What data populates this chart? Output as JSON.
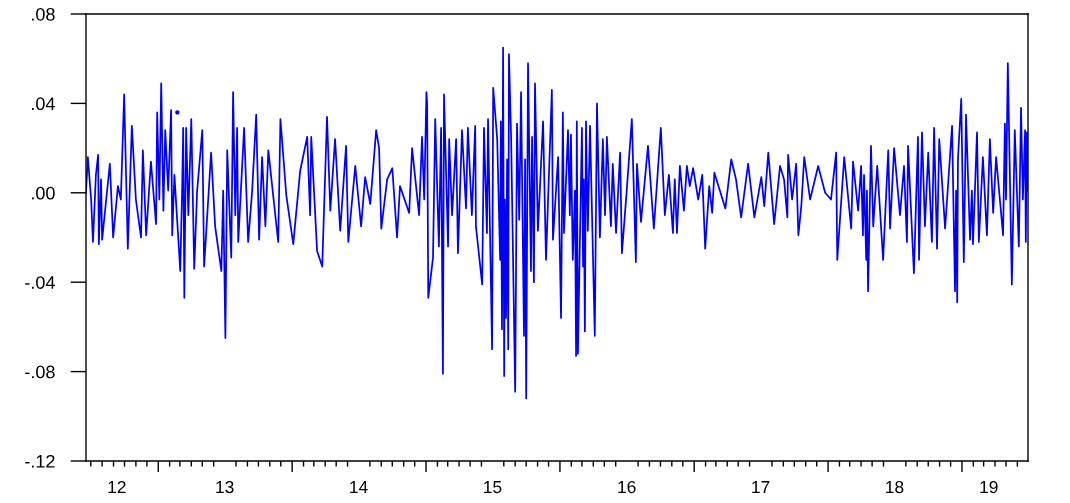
{
  "chart_data": {
    "type": "line",
    "grid": false,
    "xlim": [
      "2012-06-18",
      "2019-06-30"
    ],
    "xticks": [
      {
        "value": "2012-09-10",
        "label": "12"
      },
      {
        "value": "2013-01-01",
        "label": null
      },
      {
        "value": "2013-07-01",
        "label": "13"
      },
      {
        "value": "2014-01-01",
        "label": null
      },
      {
        "value": "2014-07-01",
        "label": "14"
      },
      {
        "value": "2015-01-01",
        "label": null
      },
      {
        "value": "2015-07-01",
        "label": "15"
      },
      {
        "value": "2016-01-01",
        "label": null
      },
      {
        "value": "2016-07-01",
        "label": "16"
      },
      {
        "value": "2017-01-01",
        "label": null
      },
      {
        "value": "2017-07-01",
        "label": "17"
      },
      {
        "value": "2018-01-01",
        "label": null
      },
      {
        "value": "2018-07-01",
        "label": "18"
      },
      {
        "value": "2019-01-01",
        "label": null
      },
      {
        "value": "2019-03-15",
        "label": "19"
      }
    ],
    "ylim": [
      -0.12,
      0.08
    ],
    "yticks": [
      {
        "value": -0.12,
        "label": "-.12"
      },
      {
        "value": -0.08,
        "label": "-.08"
      },
      {
        "value": -0.04,
        "label": "-.04"
      },
      {
        "value": 0.0,
        "label": ".00"
      },
      {
        "value": 0.04,
        "label": ".04"
      },
      {
        "value": 0.08,
        "label": ".08"
      }
    ],
    "series": [
      {
        "color": "#0000ff",
        "x": [
          "2012-06-18",
          "2012-06-23",
          "2012-07-02",
          "2012-07-07",
          "2012-07-15",
          "2012-07-21",
          "2012-07-23",
          "2012-07-29",
          "2012-08-01",
          "2012-08-22",
          "2012-08-31",
          "2012-09-13",
          "2012-09-21",
          "2012-09-30",
          "2012-10-10",
          "2012-10-21",
          "2012-11-01",
          "2012-11-15",
          "2012-11-20",
          "2012-11-29",
          "2012-12-12",
          "2012-12-26",
          "2012-12-29",
          "2013-01-04",
          "2013-01-09",
          "2013-01-15",
          "2013-01-20",
          "2013-01-28",
          "2013-02-05",
          "2013-02-08",
          "2013-02-14",
          "2013-03-02",
          "2013-03-07",
          "2013-03-10",
          "2013-03-13",
          "2013-03-18",
          "2013-03-24",
          "2013-04-01",
          "2013-04-09",
          "2013-04-17",
          "2013-05-01",
          "2013-05-06",
          "2013-05-25",
          "2013-06-05",
          "2013-06-22",
          "2013-06-27",
          "2013-07-03",
          "2013-07-08",
          "2013-07-19",
          "2013-07-24",
          "2013-07-30",
          "2013-08-04",
          "2013-08-07",
          "2013-08-23",
          "2013-09-03",
          "2013-09-14",
          "2013-09-25",
          "2013-10-03",
          "2013-10-11",
          "2013-10-20",
          "2013-10-28",
          "2013-11-24",
          "2013-11-30",
          "2013-12-16",
          "2014-01-04",
          "2014-01-23",
          "2014-02-11",
          "2014-02-19",
          "2014-02-22",
          "2014-03-10",
          "2014-03-24",
          "2014-04-06",
          "2014-04-15",
          "2014-04-28",
          "2014-05-12",
          "2014-05-28",
          "2014-06-03",
          "2014-06-22",
          "2014-07-08",
          "2014-07-19",
          "2014-08-02",
          "2014-08-18",
          "2014-08-26",
          "2014-09-01",
          "2014-09-17",
          "2014-10-01",
          "2014-10-14",
          "2014-10-22",
          "2014-11-16",
          "2014-11-24",
          "2014-12-13",
          "2014-12-21",
          "2014-12-27",
          "2015-01-02",
          "2015-01-04",
          "2015-01-07",
          "2015-01-20",
          "2015-01-26",
          "2015-02-05",
          "2015-02-11",
          "2015-02-16",
          "2015-02-19",
          "2015-03-02",
          "2015-03-05",
          "2015-03-13",
          "2015-03-24",
          "2015-03-29",
          "2015-04-09",
          "2015-04-20",
          "2015-04-25",
          "2015-05-06",
          "2015-05-15",
          "2015-05-17",
          "2015-06-03",
          "2015-06-08",
          "2015-06-16",
          "2015-06-19",
          "2015-06-30",
          "2015-07-03",
          "2015-07-14",
          "2015-07-22",
          "2015-07-24",
          "2015-07-27",
          "2015-07-30",
          "2015-08-02",
          "2015-08-04",
          "2015-08-07",
          "2015-08-10",
          "2015-08-13",
          "2015-08-15",
          "2015-08-21",
          "2015-09-01",
          "2015-09-06",
          "2015-09-12",
          "2015-09-17",
          "2015-09-25",
          "2015-09-28",
          "2015-10-01",
          "2015-10-06",
          "2015-10-14",
          "2015-10-17",
          "2015-10-22",
          "2015-10-25",
          "2015-11-02",
          "2015-11-16",
          "2015-11-24",
          "2015-12-10",
          "2015-12-13",
          "2015-12-27",
          "2016-01-04",
          "2016-01-09",
          "2016-01-12",
          "2016-01-23",
          "2016-01-28",
          "2016-01-31",
          "2016-02-05",
          "2016-02-11",
          "2016-02-14",
          "2016-02-16",
          "2016-02-19",
          "2016-03-01",
          "2016-03-04",
          "2016-03-06",
          "2016-03-09",
          "2016-03-12",
          "2016-03-17",
          "2016-03-23",
          "2016-04-05",
          "2016-04-11",
          "2016-04-19",
          "2016-04-27",
          "2016-05-03",
          "2016-05-08",
          "2016-05-19",
          "2016-05-24",
          "2016-06-02",
          "2016-06-13",
          "2016-06-18",
          "2016-07-02",
          "2016-07-15",
          "2016-07-26",
          "2016-07-29",
          "2016-08-09",
          "2016-08-28",
          "2016-09-13",
          "2016-10-02",
          "2016-10-13",
          "2016-10-24",
          "2016-11-04",
          "2016-11-09",
          "2016-11-15",
          "2016-11-23",
          "2016-12-04",
          "2016-12-12",
          "2016-12-20",
          "2016-12-29",
          "2017-01-12",
          "2017-01-23",
          "2017-01-31",
          "2017-02-11",
          "2017-02-19",
          "2017-02-25",
          "2017-03-27",
          "2017-04-12",
          "2017-04-25",
          "2017-05-09",
          "2017-05-28",
          "2017-06-14",
          "2017-07-03",
          "2017-07-11",
          "2017-07-22",
          "2017-08-07",
          "2017-08-23",
          "2017-09-03",
          "2017-09-12",
          "2017-09-14",
          "2017-09-25",
          "2017-10-06",
          "2017-10-12",
          "2017-10-20",
          "2017-10-28",
          "2017-11-13",
          "2017-12-05",
          "2017-12-24",
          "2018-01-09",
          "2018-01-23",
          "2018-01-26",
          "2018-02-14",
          "2018-03-05",
          "2018-03-10",
          "2018-03-24",
          "2018-04-01",
          "2018-04-06",
          "2018-04-09",
          "2018-04-15",
          "2018-04-17",
          "2018-04-20",
          "2018-04-28",
          "2018-05-04",
          "2018-05-15",
          "2018-05-31",
          "2018-06-14",
          "2018-06-19",
          "2018-06-30",
          "2018-07-16",
          "2018-07-27",
          "2018-08-04",
          "2018-08-07",
          "2018-08-23",
          "2018-09-03",
          "2018-09-06",
          "2018-09-14",
          "2018-09-22",
          "2018-10-01",
          "2018-10-11",
          "2018-10-17",
          "2018-10-25",
          "2018-10-31",
          "2018-11-16",
          "2018-12-05",
          "2018-12-13",
          "2018-12-16",
          "2018-12-19",
          "2018-12-21",
          "2018-12-30",
          "2019-01-06",
          "2019-01-12",
          "2019-01-23",
          "2019-01-28",
          "2019-01-31",
          "2019-02-11",
          "2019-02-16",
          "2019-02-27",
          "2019-03-10",
          "2019-03-18",
          "2019-03-27",
          "2019-04-04",
          "2019-04-23",
          "2019-04-28",
          "2019-05-01",
          "2019-05-06",
          "2019-05-17",
          "2019-05-25",
          "2019-06-05",
          "2019-06-11",
          "2019-06-16",
          "2019-06-22",
          "2019-06-24",
          "2019-06-27",
          "2019-06-30"
        ],
        "values": [
          0.0,
          0.016,
          -0.003,
          -0.022,
          0.008,
          0.017,
          -0.023,
          0.006,
          -0.021,
          0.013,
          -0.02,
          0.003,
          -0.003,
          0.044,
          -0.025,
          0.03,
          -0.003,
          -0.02,
          0.019,
          -0.019,
          0.014,
          -0.014,
          0.036,
          -0.003,
          0.049,
          -0.008,
          0.028,
          0.001,
          0.037,
          -0.019,
          0.008,
          -0.035,
          0.001,
          0.029,
          -0.047,
          0.029,
          -0.01,
          0.033,
          -0.034,
          0.001,
          0.028,
          -0.033,
          0.018,
          -0.015,
          -0.035,
          0.001,
          -0.065,
          0.019,
          -0.029,
          0.045,
          -0.01,
          0.029,
          -0.022,
          0.029,
          -0.022,
          0.001,
          0.035,
          -0.021,
          0.016,
          -0.015,
          0.019,
          -0.022,
          0.033,
          -0.001,
          -0.023,
          0.01,
          0.025,
          -0.01,
          0.025,
          -0.026,
          -0.033,
          0.034,
          -0.008,
          0.024,
          -0.017,
          0.021,
          -0.022,
          0.012,
          -0.015,
          0.007,
          -0.005,
          0.028,
          0.02,
          -0.016,
          0.006,
          0.011,
          -0.02,
          0.003,
          -0.009,
          0.02,
          -0.01,
          0.025,
          -0.003,
          0.045,
          0.04,
          -0.047,
          -0.029,
          0.033,
          -0.024,
          0.029,
          -0.081,
          0.044,
          -0.024,
          0.024,
          -0.01,
          0.024,
          -0.027,
          0.028,
          -0.007,
          0.029,
          -0.01,
          0.03,
          -0.015,
          -0.041,
          0.029,
          -0.018,
          0.033,
          -0.07,
          0.047,
          0.024,
          -0.03,
          0.032,
          -0.061,
          0.065,
          -0.082,
          -0.003,
          -0.056,
          0.015,
          -0.07,
          0.062,
          0.024,
          -0.089,
          0.031,
          -0.012,
          0.045,
          -0.064,
          0.015,
          -0.092,
          0.058,
          -0.035,
          0.025,
          -0.04,
          0.049,
          -0.017,
          0.032,
          -0.03,
          0.046,
          -0.021,
          0.016,
          -0.056,
          0.036,
          -0.018,
          0.028,
          -0.01,
          0.026,
          -0.03,
          0.001,
          -0.073,
          0.032,
          -0.072,
          0.029,
          -0.033,
          0.006,
          -0.062,
          0.032,
          -0.017,
          0.03,
          -0.064,
          0.04,
          -0.02,
          0.024,
          -0.01,
          0.025,
          -0.015,
          0.013,
          -0.018,
          0.018,
          -0.027,
          0.003,
          0.033,
          -0.031,
          0.013,
          -0.013,
          0.021,
          -0.016,
          0.029,
          -0.01,
          0.008,
          -0.018,
          0.006,
          -0.018,
          0.012,
          -0.008,
          0.012,
          0.003,
          0.011,
          -0.003,
          0.008,
          -0.025,
          0.003,
          -0.009,
          0.009,
          -0.007,
          0.015,
          0.006,
          -0.011,
          0.013,
          -0.011,
          0.007,
          -0.006,
          0.018,
          -0.014,
          0.012,
          0.006,
          -0.011,
          0.017,
          -0.003,
          0.013,
          -0.019,
          -0.006,
          0.016,
          -0.003,
          0.012,
          0.0,
          -0.003,
          0.018,
          -0.03,
          0.016,
          -0.016,
          0.014,
          -0.008,
          0.012,
          -0.019,
          0.008,
          -0.03,
          0.001,
          -0.044,
          0.021,
          -0.015,
          0.012,
          -0.03,
          0.019,
          -0.016,
          0.02,
          -0.01,
          0.012,
          -0.022,
          0.021,
          -0.036,
          0.025,
          -0.03,
          0.027,
          -0.015,
          0.018,
          -0.022,
          0.029,
          -0.025,
          0.024,
          -0.016,
          0.03,
          -0.044,
          0.001,
          -0.049,
          0.015,
          0.042,
          -0.031,
          0.035,
          -0.021,
          0.001,
          -0.023,
          0.027,
          -0.022,
          0.016,
          -0.019,
          0.024,
          -0.009,
          0.016,
          -0.019,
          0.031,
          -0.003,
          0.058,
          -0.041,
          0.028,
          -0.024,
          0.038,
          -0.003,
          0.028,
          -0.022,
          0.027,
          0.001
        ]
      },
      {
        "type": "scatter",
        "color": "#0000ff",
        "marker": "circle",
        "x": [
          "2013-02-22"
        ],
        "values": [
          0.036
        ]
      }
    ]
  }
}
